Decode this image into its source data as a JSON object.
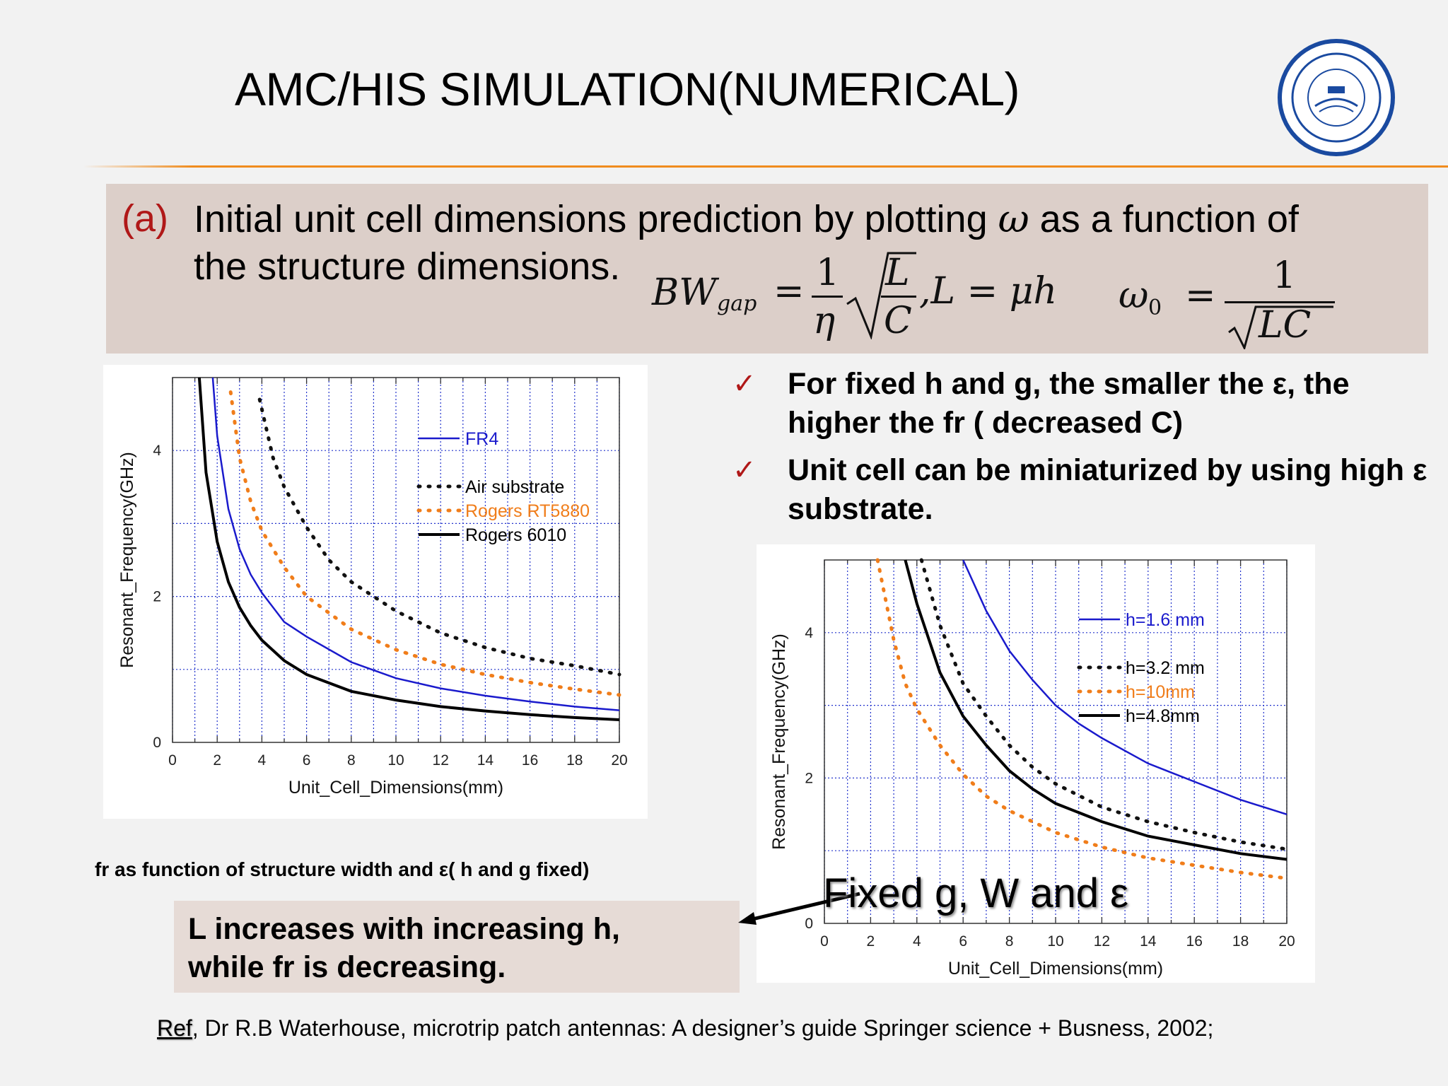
{
  "slide": {
    "title": "AMC/HIS SIMULATION(NUMERICAL)",
    "banner": {
      "label": "(a)",
      "line1_a": "Initial unit cell dimensions prediction by plotting ",
      "omega": "ω",
      "line1_b": " as a function of",
      "line2": "the structure dimensions.",
      "eq1_lhs": "BW",
      "eq1_sub": "gap",
      "eq1_num": "1",
      "eq1_den": "η",
      "eq1_rad_num": "L",
      "eq1_rad_den": "C",
      "eq1_tail": ",L = μh",
      "eq2_lhs": "ω",
      "eq2_sub": "0",
      "eq2_num": "1",
      "eq2_den": "LC"
    },
    "bullets": [
      {
        "check": "✓",
        "text": "For fixed h and g, the smaller the ε, the higher the fr ( decreased C)"
      },
      {
        "check": "✓",
        "text": "Unit cell can be miniaturized by using high ε substrate."
      }
    ],
    "caption_left": "fr as function of structure width and ε( h and g fixed)",
    "note_line1": "L increases with increasing h,",
    "note_line2": "while fr is decreasing.",
    "fixed_label": "Fixed g, W and ε",
    "ref_label": "Ref",
    "ref_text": ",  Dr R.B Waterhouse, microtrip patch antennas: A designer’s guide Springer science + Busness, 2002;"
  },
  "colors": {
    "accent": "#b01818",
    "rule": "#f08c1e",
    "blue": "#1a1acc",
    "orange": "#f07d1a",
    "black": "#000000"
  },
  "chart_data": [
    {
      "type": "line",
      "xlabel": "Unit_Cell_Dimensions(mm)",
      "ylabel": "Resonant_Frequency(GHz)",
      "xlim": [
        0,
        20
      ],
      "ylim": [
        0,
        5
      ],
      "xticks": [
        "0",
        "2",
        "4",
        "6",
        "8",
        "10",
        "12",
        "14",
        "16",
        "18",
        "20"
      ],
      "yticks": [
        "0",
        "2",
        "4"
      ],
      "grid": true,
      "legend_position": "top-right",
      "series": [
        {
          "name": "FR4",
          "color": "#1a1acc",
          "style": "solid",
          "x": [
            1.8,
            2,
            2.5,
            3,
            3.5,
            4,
            5,
            6,
            8,
            10,
            12,
            14,
            16,
            18,
            20
          ],
          "y": [
            5.0,
            4.2,
            3.2,
            2.65,
            2.3,
            2.05,
            1.65,
            1.45,
            1.1,
            0.88,
            0.74,
            0.64,
            0.56,
            0.49,
            0.44
          ]
        },
        {
          "name": "Air substrate",
          "color": "#111111",
          "style": "dotted",
          "x": [
            3.9,
            4.5,
            5,
            6,
            7,
            8,
            10,
            12,
            14,
            16,
            18,
            20
          ],
          "y": [
            4.7,
            3.9,
            3.5,
            2.95,
            2.5,
            2.2,
            1.8,
            1.5,
            1.3,
            1.15,
            1.05,
            0.93
          ]
        },
        {
          "name": "Rogers RT5880",
          "color": "#f07d1a",
          "style": "dotted",
          "x": [
            2.6,
            3,
            3.5,
            4,
            5,
            6,
            8,
            10,
            12,
            14,
            16,
            18,
            20
          ],
          "y": [
            4.8,
            3.9,
            3.3,
            2.9,
            2.4,
            2.0,
            1.55,
            1.27,
            1.07,
            0.93,
            0.82,
            0.73,
            0.65
          ]
        },
        {
          "name": "Rogers 6010",
          "color": "#000000",
          "style": "solid",
          "x": [
            1.2,
            1.5,
            2,
            2.5,
            3,
            3.5,
            4,
            5,
            6,
            8,
            10,
            12,
            14,
            16,
            18,
            20
          ],
          "y": [
            5.0,
            3.7,
            2.75,
            2.2,
            1.85,
            1.6,
            1.4,
            1.12,
            0.93,
            0.7,
            0.58,
            0.49,
            0.43,
            0.38,
            0.34,
            0.31
          ]
        }
      ]
    },
    {
      "type": "line",
      "xlabel": "Unit_Cell_Dimensions(mm)",
      "ylabel": "Resonant_Frequency(GHz)",
      "xlim": [
        0,
        20
      ],
      "ylim": [
        0,
        5
      ],
      "xticks": [
        "0",
        "2",
        "4",
        "6",
        "8",
        "10",
        "12",
        "14",
        "16",
        "18",
        "20"
      ],
      "yticks": [
        "0",
        "2",
        "4"
      ],
      "grid": true,
      "legend_position": "top-right",
      "series": [
        {
          "name": "h=1.6 mm",
          "color": "#1a1acc",
          "style": "solid",
          "x": [
            6,
            7,
            8,
            9,
            10,
            11,
            12,
            14,
            16,
            18,
            20
          ],
          "y": [
            5.0,
            4.3,
            3.75,
            3.35,
            3.0,
            2.75,
            2.55,
            2.2,
            1.95,
            1.7,
            1.5
          ]
        },
        {
          "name": "h=3.2 mm",
          "color": "#111111",
          "style": "dotted",
          "x": [
            4.2,
            5,
            6,
            7,
            8,
            9,
            10,
            12,
            14,
            16,
            18,
            20
          ],
          "y": [
            5.0,
            4.1,
            3.3,
            2.85,
            2.45,
            2.15,
            1.92,
            1.6,
            1.4,
            1.25,
            1.12,
            1.02
          ]
        },
        {
          "name": "h=10mm",
          "color": "#f07d1a",
          "style": "dotted",
          "x": [
            2.3,
            3,
            3.5,
            4,
            5,
            6,
            7,
            8,
            10,
            12,
            14,
            16,
            18,
            20
          ],
          "y": [
            5.0,
            3.9,
            3.3,
            2.95,
            2.45,
            2.05,
            1.75,
            1.55,
            1.25,
            1.05,
            0.9,
            0.8,
            0.7,
            0.62
          ]
        },
        {
          "name": "h=4.8mm",
          "color": "#000000",
          "style": "solid",
          "x": [
            3.5,
            4,
            5,
            6,
            7,
            8,
            9,
            10,
            12,
            14,
            16,
            18,
            20
          ],
          "y": [
            5.0,
            4.4,
            3.45,
            2.85,
            2.45,
            2.1,
            1.85,
            1.65,
            1.4,
            1.2,
            1.08,
            0.96,
            0.88
          ]
        }
      ]
    }
  ]
}
